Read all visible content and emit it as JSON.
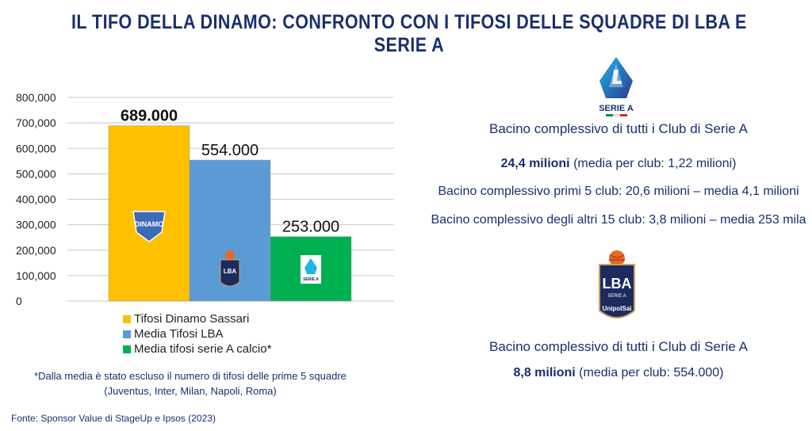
{
  "title": "IL TIFO DELLA DINAMO: CONFRONTO CON I TIFOSI DELLE SQUADRE DI LBA E SERIE A",
  "chart_data": {
    "type": "bar",
    "categories": [
      "Tifosi Dinamo Sassari",
      "Media Tifosi LBA",
      "Media tifosi serie A calcio*"
    ],
    "values": [
      689000,
      554000,
      253000
    ],
    "data_labels": [
      "689.000",
      "554.000",
      "253.000"
    ],
    "y_ticks": [
      "0",
      "100,000",
      "200,000",
      "300,000",
      "400,000",
      "500,000",
      "600,000",
      "700,000",
      "800,000"
    ],
    "ylim": [
      0,
      800000
    ],
    "colors": [
      "#ffc000",
      "#5b9bd5",
      "#00b050"
    ],
    "grid": true,
    "legend_position": "bottom"
  },
  "legend": [
    {
      "label": "Tifosi Dinamo Sassari",
      "color": "#ffc000"
    },
    {
      "label": "Media Tifosi LBA",
      "color": "#5b9bd5"
    },
    {
      "label": "Media tifosi serie A calcio*",
      "color": "#00b050"
    }
  ],
  "note": {
    "line1": "*Dalla media è stato escluso il numero di tifosi delle prime 5 squadre",
    "line2": "(Juventus, Inter, Milan, Napoli, Roma)"
  },
  "source": "Fonte: Sponsor Value di StageUp e Ipsos (2023)",
  "serie_a": {
    "logo_text": "SERIE A",
    "heading": "Bacino complessivo di tutti i Club di Serie A",
    "total_bold": "24,4 milioni",
    "total_rest": " (media per club: 1,22 milioni)",
    "line_top5": "Bacino complessivo primi 5 club: 20,6 milioni – media 4,1 milioni",
    "line_others": "Bacino complessivo degli altri 15 club: 3,8 milioni – media 253 mila"
  },
  "lba": {
    "logo_text": "LBA",
    "logo_sub": "SERIE A",
    "logo_sponsor": "UnipolSai",
    "heading": "Bacino complessivo di tutti i Club di Serie A",
    "total_bold": "8,8 milioni",
    "total_rest": " (media per club: 554.000)"
  },
  "dinamo_logo_text": "DINAMO"
}
